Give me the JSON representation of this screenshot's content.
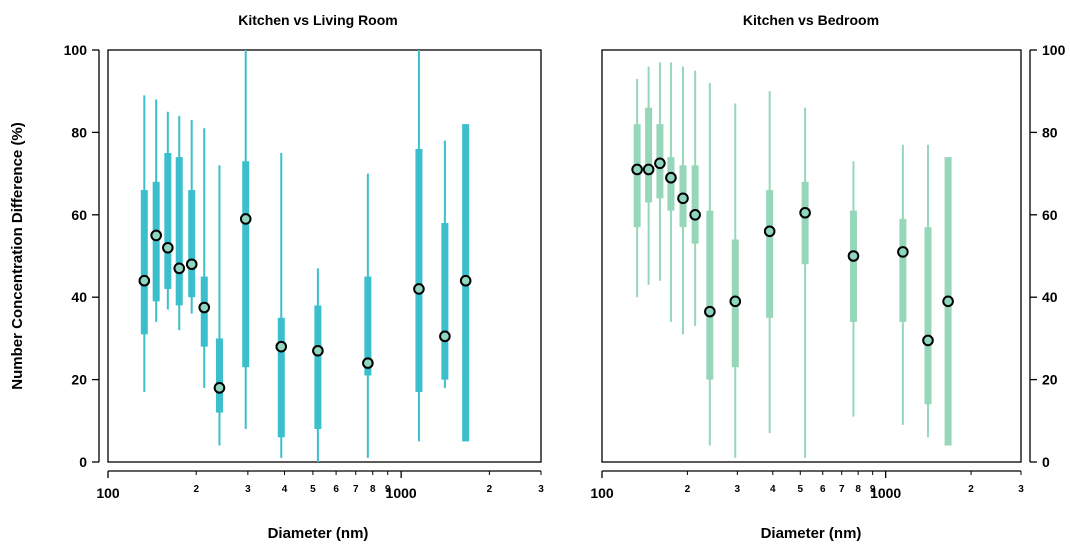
{
  "chart_data": [
    {
      "type": "box",
      "title": "Kitchen vs Living Room",
      "xlabel": "Diameter (nm)",
      "ylabel": "Number Concentration Difference (%)",
      "xscale": "log",
      "xlim": [
        100,
        3000
      ],
      "ylim": [
        0,
        100
      ],
      "x_major_ticks": [
        {
          "value": 100,
          "label": "100"
        },
        {
          "value": 1000,
          "label": "1000"
        }
      ],
      "x_minor_ticks": [
        {
          "value": 200,
          "label": "2"
        },
        {
          "value": 300,
          "label": "3"
        },
        {
          "value": 400,
          "label": "4"
        },
        {
          "value": 500,
          "label": "5"
        },
        {
          "value": 600,
          "label": "6"
        },
        {
          "value": 700,
          "label": "7"
        },
        {
          "value": 800,
          "label": "8"
        },
        {
          "value": 900,
          "label": "9"
        },
        {
          "value": 2000,
          "label": "2"
        },
        {
          "value": 3000,
          "label": "3"
        }
      ],
      "y_ticks": [
        0,
        20,
        40,
        60,
        80,
        100
      ],
      "y_axis_side": "left",
      "color": "#3bbfcc",
      "points": [
        {
          "x": 133,
          "min": 17,
          "q1": 31,
          "q3": 66,
          "max": 89,
          "median": 44
        },
        {
          "x": 146,
          "min": 34,
          "q1": 39,
          "q3": 68,
          "max": 88,
          "median": 55
        },
        {
          "x": 160,
          "min": 37,
          "q1": 42,
          "q3": 75,
          "max": 85,
          "median": 52
        },
        {
          "x": 175,
          "min": 32,
          "q1": 38,
          "q3": 74,
          "max": 84,
          "median": 47
        },
        {
          "x": 193,
          "min": 36,
          "q1": 40,
          "q3": 66,
          "max": 83,
          "median": 48
        },
        {
          "x": 213,
          "min": 18,
          "q1": 28,
          "q3": 45,
          "max": 81,
          "median": 37.5
        },
        {
          "x": 240,
          "min": 4,
          "q1": 12,
          "q3": 30,
          "max": 72,
          "median": 18
        },
        {
          "x": 295,
          "min": 8,
          "q1": 23,
          "q3": 73,
          "max": 100,
          "median": 59
        },
        {
          "x": 390,
          "min": 1,
          "q1": 6,
          "q3": 35,
          "max": 75,
          "median": 28
        },
        {
          "x": 520,
          "min": 0,
          "q1": 8,
          "q3": 38,
          "max": 47,
          "median": 27
        },
        {
          "x": 770,
          "min": 1,
          "q1": 21,
          "q3": 45,
          "max": 70,
          "median": 24
        },
        {
          "x": 1150,
          "min": 5,
          "q1": 17,
          "q3": 76,
          "max": 100,
          "median": 42
        },
        {
          "x": 1410,
          "min": 18,
          "q1": 20,
          "q3": 58,
          "max": 78,
          "median": 30.5
        },
        {
          "x": 1660,
          "min": 5,
          "q1": 5,
          "q3": 82,
          "max": 82,
          "median": 44
        }
      ]
    },
    {
      "type": "box",
      "title": "Kitchen vs Bedroom",
      "xlabel": "Diameter (nm)",
      "ylabel": "",
      "xscale": "log",
      "xlim": [
        100,
        3000
      ],
      "ylim": [
        0,
        100
      ],
      "x_major_ticks": [
        {
          "value": 100,
          "label": "100"
        },
        {
          "value": 1000,
          "label": "1000"
        }
      ],
      "x_minor_ticks": [
        {
          "value": 200,
          "label": "2"
        },
        {
          "value": 300,
          "label": "3"
        },
        {
          "value": 400,
          "label": "4"
        },
        {
          "value": 500,
          "label": "5"
        },
        {
          "value": 600,
          "label": "6"
        },
        {
          "value": 700,
          "label": "7"
        },
        {
          "value": 800,
          "label": "8"
        },
        {
          "value": 900,
          "label": "9"
        },
        {
          "value": 2000,
          "label": "2"
        },
        {
          "value": 3000,
          "label": "3"
        }
      ],
      "y_ticks": [
        0,
        20,
        40,
        60,
        80,
        100
      ],
      "y_axis_side": "right",
      "color": "#96d7b9",
      "points": [
        {
          "x": 133,
          "min": 40,
          "q1": 57,
          "q3": 82,
          "max": 93,
          "median": 71
        },
        {
          "x": 146,
          "min": 43,
          "q1": 63,
          "q3": 86,
          "max": 96,
          "median": 71
        },
        {
          "x": 160,
          "min": 44,
          "q1": 64,
          "q3": 82,
          "max": 97,
          "median": 72.5
        },
        {
          "x": 175,
          "min": 34,
          "q1": 61,
          "q3": 74,
          "max": 97,
          "median": 69
        },
        {
          "x": 193,
          "min": 31,
          "q1": 57,
          "q3": 72,
          "max": 96,
          "median": 64
        },
        {
          "x": 213,
          "min": 33,
          "q1": 53,
          "q3": 72,
          "max": 95,
          "median": 60
        },
        {
          "x": 240,
          "min": 4,
          "q1": 20,
          "q3": 61,
          "max": 92,
          "median": 36.5
        },
        {
          "x": 295,
          "min": 1,
          "q1": 23,
          "q3": 54,
          "max": 87,
          "median": 39
        },
        {
          "x": 390,
          "min": 7,
          "q1": 35,
          "q3": 66,
          "max": 90,
          "median": 56
        },
        {
          "x": 520,
          "min": 1,
          "q1": 48,
          "q3": 68,
          "max": 86,
          "median": 60.5
        },
        {
          "x": 770,
          "min": 11,
          "q1": 34,
          "q3": 61,
          "max": 73,
          "median": 50
        },
        {
          "x": 1150,
          "min": 9,
          "q1": 34,
          "q3": 59,
          "max": 77,
          "median": 51
        },
        {
          "x": 1410,
          "min": 6,
          "q1": 14,
          "q3": 57,
          "max": 77,
          "median": 29.5
        },
        {
          "x": 1660,
          "min": 4,
          "q1": 4,
          "q3": 74,
          "max": 74,
          "median": 39
        }
      ]
    }
  ]
}
